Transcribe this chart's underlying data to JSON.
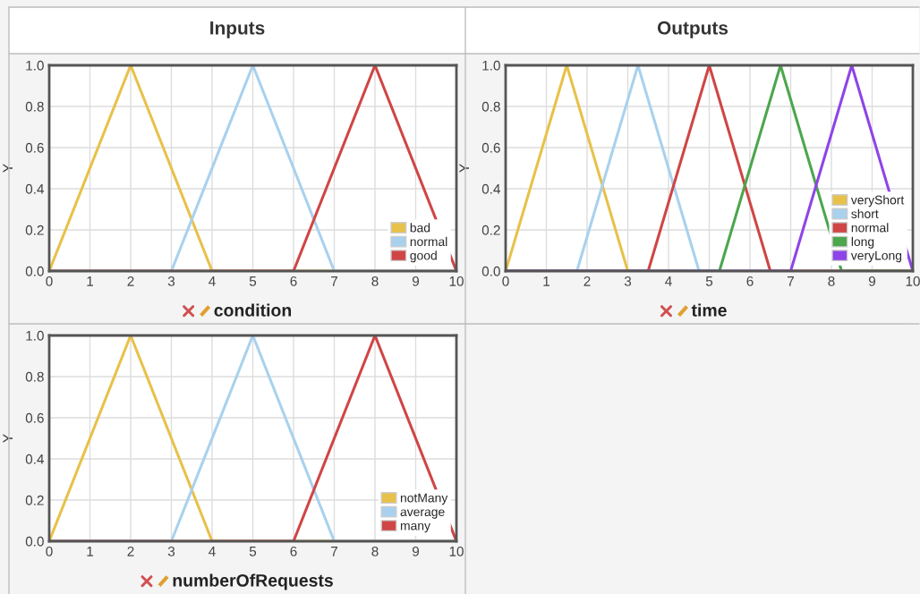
{
  "chart_data": [
    {
      "type": "line",
      "title": "Inputs",
      "xlabel": "condition",
      "ylabel": "Y",
      "xlim": [
        0,
        10
      ],
      "ylim": [
        0,
        1
      ],
      "xticks": [
        0,
        1,
        2,
        3,
        4,
        5,
        6,
        7,
        8,
        9,
        10
      ],
      "yticks": [
        {
          "value": 0,
          "label": "0.0"
        },
        {
          "value": 0.2,
          "label": "0.2"
        },
        {
          "value": 0.4,
          "label": "0.4"
        },
        {
          "value": 0.6,
          "label": "0.6"
        },
        {
          "value": 0.8,
          "label": "0.8"
        },
        {
          "value": 1,
          "label": "1.0"
        }
      ],
      "grid": true,
      "legend": "bottom right",
      "marker": "none",
      "line_style": "solid",
      "series": [
        {
          "name": "bad",
          "color": "#e8c14a",
          "x": [
            0,
            2,
            4,
            10
          ],
          "values": [
            0,
            1,
            0,
            0
          ]
        },
        {
          "name": "normal",
          "color": "#a9d1ee",
          "x": [
            0,
            3,
            5,
            7,
            10
          ],
          "values": [
            0,
            0,
            1,
            0,
            0
          ]
        },
        {
          "name": "good",
          "color": "#d04545",
          "x": [
            0,
            6,
            8,
            10
          ],
          "values": [
            0,
            0,
            1,
            0
          ]
        }
      ]
    },
    {
      "type": "line",
      "title": "Outputs",
      "xlabel": "time",
      "ylabel": "Y",
      "xlim": [
        0,
        10
      ],
      "ylim": [
        0,
        1
      ],
      "xticks": [
        0,
        1,
        2,
        3,
        4,
        5,
        6,
        7,
        8,
        9,
        10
      ],
      "yticks": [
        {
          "value": 0,
          "label": "0.0"
        },
        {
          "value": 0.2,
          "label": "0.2"
        },
        {
          "value": 0.4,
          "label": "0.4"
        },
        {
          "value": 0.6,
          "label": "0.6"
        },
        {
          "value": 0.8,
          "label": "0.8"
        },
        {
          "value": 1,
          "label": "1.0"
        }
      ],
      "grid": true,
      "legend": "bottom right",
      "marker": "none",
      "line_style": "solid",
      "series": [
        {
          "name": "veryShort",
          "color": "#e8c14a",
          "x": [
            0,
            1.5,
            3,
            10
          ],
          "values": [
            0,
            1,
            0,
            0
          ]
        },
        {
          "name": "short",
          "color": "#a9d1ee",
          "x": [
            0,
            1.75,
            3.25,
            4.75,
            10
          ],
          "values": [
            0,
            0,
            1,
            0,
            0
          ]
        },
        {
          "name": "normal",
          "color": "#d04545",
          "x": [
            0,
            3.5,
            5,
            6.5,
            10
          ],
          "values": [
            0,
            0,
            1,
            0,
            0
          ]
        },
        {
          "name": "long",
          "color": "#4ca64c",
          "x": [
            0,
            5.25,
            6.75,
            8.25,
            10
          ],
          "values": [
            0,
            0,
            1,
            0,
            0
          ]
        },
        {
          "name": "veryLong",
          "color": "#8e44e8",
          "x": [
            0,
            7,
            8.5,
            10
          ],
          "values": [
            0,
            0,
            1,
            0
          ]
        }
      ]
    },
    {
      "type": "line",
      "xlabel": "numberOfRequests",
      "ylabel": "Y",
      "xlim": [
        0,
        10
      ],
      "ylim": [
        0,
        1
      ],
      "xticks": [
        0,
        1,
        2,
        3,
        4,
        5,
        6,
        7,
        8,
        9,
        10
      ],
      "yticks": [
        {
          "value": 0,
          "label": "0.0"
        },
        {
          "value": 0.2,
          "label": "0.2"
        },
        {
          "value": 0.4,
          "label": "0.4"
        },
        {
          "value": 0.6,
          "label": "0.6"
        },
        {
          "value": 0.8,
          "label": "0.8"
        },
        {
          "value": 1,
          "label": "1.0"
        }
      ],
      "grid": true,
      "legend": "bottom right",
      "marker": "none",
      "line_style": "solid",
      "series": [
        {
          "name": "notMany",
          "color": "#e8c14a",
          "x": [
            0,
            2,
            4,
            10
          ],
          "values": [
            0,
            1,
            0,
            0
          ]
        },
        {
          "name": "average",
          "color": "#a9d1ee",
          "x": [
            0,
            3,
            5,
            7,
            10
          ],
          "values": [
            0,
            0,
            1,
            0,
            0
          ]
        },
        {
          "name": "many",
          "color": "#d04545",
          "x": [
            0,
            6,
            8,
            10
          ],
          "values": [
            0,
            0,
            1,
            0
          ]
        }
      ]
    }
  ]
}
